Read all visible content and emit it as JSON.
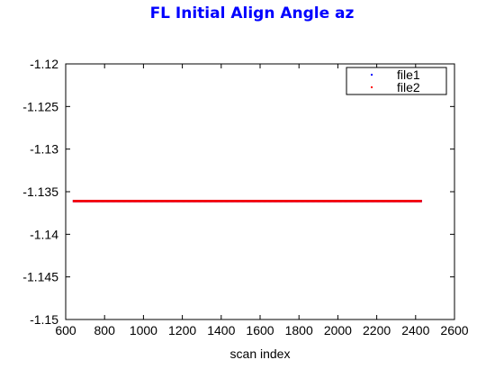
{
  "chart_data": {
    "type": "scatter",
    "title": "FL Initial Align Angle az",
    "title_color": "#0000ff",
    "xlabel": "scan index",
    "ylabel": "",
    "xlim": [
      600,
      2600
    ],
    "ylim": [
      -1.15,
      -1.12
    ],
    "x_ticks": [
      "600",
      "800",
      "1000",
      "1200",
      "1400",
      "1600",
      "1800",
      "2000",
      "2200",
      "2400",
      "2600"
    ],
    "y_ticks": [
      "-1.12",
      "-1.125",
      "-1.13",
      "-1.135",
      "-1.14",
      "-1.145",
      "-1.15"
    ],
    "grid": false,
    "legend_position": "top-right",
    "series": [
      {
        "name": "file1",
        "color": "#0000ff",
        "x_range": [
          640,
          2430
        ],
        "y": -1.1361
      },
      {
        "name": "file2",
        "color": "#ff0000",
        "x_range": [
          640,
          2430
        ],
        "y": -1.1361
      }
    ]
  }
}
